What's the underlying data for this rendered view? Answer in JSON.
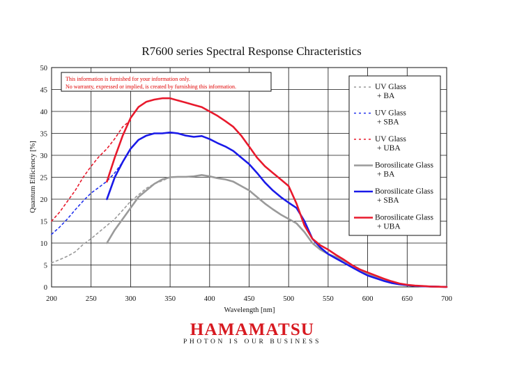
{
  "chart_data": {
    "type": "line",
    "title": "R7600 series Spectral Response Chracteristics",
    "xlabel": "Wavelength [nm]",
    "ylabel": "Quantum Efficiency [%]",
    "xlim": [
      200,
      700
    ],
    "ylim": [
      0,
      50
    ],
    "x_ticks": [
      200,
      250,
      300,
      350,
      400,
      450,
      500,
      550,
      600,
      650,
      700
    ],
    "y_ticks": [
      0,
      5,
      10,
      15,
      20,
      25,
      30,
      35,
      40,
      45,
      50
    ],
    "grid": "horizontal and vertical",
    "legend_position": "top-right",
    "disclaimer": [
      "This information is furnished for your information only.",
      "No warranty, expressed or implied, is created by furnishing this information."
    ],
    "series": [
      {
        "name": "UV Glass + BA",
        "legend_lines": [
          "UV Glass",
          "+ BA"
        ],
        "color": "#999999",
        "dashed": true,
        "x": [
          200,
          210,
          220,
          230,
          240,
          250,
          260,
          270,
          280,
          290,
          300,
          310,
          320,
          330,
          340,
          350
        ],
        "y": [
          5.5,
          6.2,
          7.0,
          8.0,
          9.7,
          11.0,
          12.5,
          14.0,
          15.5,
          17.5,
          19.5,
          21.0,
          22.5,
          23.5,
          24.2,
          25.0
        ]
      },
      {
        "name": "UV Glass + SBA",
        "legend_lines": [
          "UV Glass",
          "+ SBA"
        ],
        "color": "#2233ee",
        "dashed": true,
        "x": [
          200,
          210,
          220,
          230,
          240,
          250,
          260,
          270,
          280,
          290,
          295
        ],
        "y": [
          12.0,
          13.6,
          15.5,
          17.6,
          19.6,
          21.4,
          22.7,
          24.1,
          26.0,
          28.5,
          30.0
        ]
      },
      {
        "name": "UV Glass + UBA",
        "legend_lines": [
          "UV Glass",
          "+ UBA"
        ],
        "color": "#e8192c",
        "dashed": true,
        "x": [
          200,
          210,
          220,
          230,
          240,
          250,
          260,
          270,
          280,
          290,
          300
        ],
        "y": [
          15.0,
          17.0,
          19.5,
          22.0,
          25.0,
          27.5,
          29.7,
          31.5,
          33.8,
          36.5,
          38.0
        ]
      },
      {
        "name": "Borosilicate Glass + BA",
        "legend_lines": [
          "Borosilicate Glass",
          "+ BA"
        ],
        "color": "#9a9a9a",
        "dashed": false,
        "x": [
          270,
          280,
          290,
          300,
          310,
          320,
          330,
          340,
          350,
          360,
          370,
          380,
          390,
          400,
          410,
          420,
          430,
          440,
          450,
          460,
          470,
          480,
          490,
          500,
          510,
          520,
          530,
          540,
          550,
          560,
          570,
          580,
          590,
          600,
          610,
          620,
          630,
          640,
          650,
          660,
          670,
          680,
          690,
          700
        ],
        "y": [
          10.0,
          13.0,
          15.5,
          18.0,
          20.5,
          22.0,
          23.5,
          24.5,
          25.0,
          25.1,
          25.1,
          25.2,
          25.5,
          25.2,
          24.8,
          24.5,
          24.0,
          23.0,
          22.0,
          20.5,
          19.0,
          17.7,
          16.5,
          15.5,
          14.5,
          12.5,
          10.0,
          8.5,
          7.5,
          6.8,
          6.0,
          5.0,
          4.0,
          3.0,
          2.3,
          1.6,
          1.0,
          0.6,
          0.4,
          0.25,
          0.15,
          0.1,
          0.05,
          0.0
        ]
      },
      {
        "name": "Borosilicate Glass + SBA",
        "legend_lines": [
          "Borosilicate Glass",
          "+ SBA"
        ],
        "color": "#1a1ae8",
        "dashed": false,
        "x": [
          270,
          280,
          290,
          300,
          310,
          320,
          330,
          340,
          350,
          360,
          370,
          380,
          390,
          400,
          410,
          420,
          430,
          440,
          450,
          460,
          470,
          480,
          490,
          500,
          510,
          520,
          530,
          540,
          550,
          560,
          570,
          580,
          590,
          600,
          610,
          620,
          630,
          640,
          650,
          660,
          670,
          680,
          690,
          700
        ],
        "y": [
          20.0,
          25.0,
          28.5,
          31.5,
          33.5,
          34.5,
          35.0,
          35.0,
          35.2,
          35.0,
          34.5,
          34.2,
          34.4,
          33.7,
          32.8,
          32.0,
          31.0,
          29.5,
          28.0,
          26.0,
          23.8,
          22.0,
          20.5,
          19.2,
          18.0,
          15.0,
          11.0,
          9.0,
          7.5,
          6.5,
          5.5,
          4.5,
          3.5,
          2.6,
          2.0,
          1.4,
          0.9,
          0.6,
          0.4,
          0.25,
          0.15,
          0.1,
          0.05,
          0.0
        ]
      },
      {
        "name": "Borosilicate Glass + UBA",
        "legend_lines": [
          "Borosilicate Glass",
          "+ UBA"
        ],
        "color": "#e8192c",
        "dashed": false,
        "x": [
          270,
          280,
          290,
          300,
          310,
          320,
          330,
          340,
          350,
          360,
          370,
          380,
          390,
          400,
          410,
          420,
          430,
          440,
          450,
          460,
          470,
          480,
          490,
          500,
          510,
          520,
          530,
          540,
          550,
          560,
          570,
          580,
          590,
          600,
          610,
          620,
          630,
          640,
          650,
          660,
          670,
          680,
          690,
          700
        ],
        "y": [
          24.0,
          29.5,
          34.5,
          38.5,
          41.0,
          42.2,
          42.7,
          43.0,
          43.0,
          42.5,
          42.0,
          41.5,
          41.0,
          40.0,
          39.0,
          37.8,
          36.5,
          34.5,
          32.0,
          29.5,
          27.5,
          26.0,
          24.5,
          23.0,
          19.0,
          14.0,
          11.0,
          9.5,
          8.5,
          7.3,
          6.2,
          5.0,
          4.0,
          3.3,
          2.6,
          1.9,
          1.3,
          0.8,
          0.5,
          0.3,
          0.2,
          0.1,
          0.05,
          0.0
        ]
      }
    ]
  },
  "brand": {
    "logo": "HAMAMATSU",
    "tagline": "PHOTON IS OUR BUSINESS",
    "logo_color": "#d71920"
  }
}
